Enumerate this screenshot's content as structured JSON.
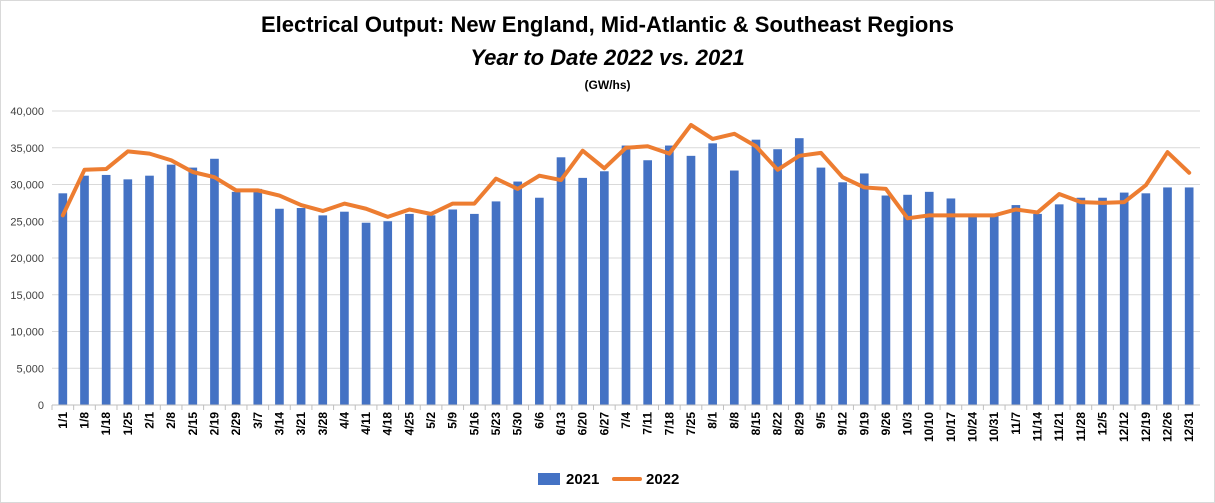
{
  "chart_data": {
    "type": "bar",
    "title": "Electrical Output:  New England, Mid-Atlantic & Southeast Regions",
    "subtitle": "Year to Date 2022 vs. 2021",
    "units": "(GW/hs)",
    "categories": [
      "1/1",
      "1/8",
      "1/18",
      "1/25",
      "2/1",
      "2/8",
      "2/15",
      "2/19",
      "2/29",
      "3/7",
      "3/14",
      "3/21",
      "3/28",
      "4/4",
      "4/11",
      "4/18",
      "4/25",
      "5/2",
      "5/9",
      "5/16",
      "5/23",
      "5/30",
      "6/6",
      "6/13",
      "6/20",
      "6/27",
      "7/4",
      "7/11",
      "7/18",
      "7/25",
      "8/1",
      "8/8",
      "8/15",
      "8/22",
      "8/29",
      "9/5",
      "9/12",
      "9/19",
      "9/26",
      "10/3",
      "10/10",
      "10/17",
      "10/24",
      "10/31",
      "11/7",
      "11/14",
      "11/21",
      "11/28",
      "12/5",
      "12/12",
      "12/19",
      "12/26",
      "12/31"
    ],
    "y_ticks": [
      "0",
      "5,000",
      "10,000",
      "15,000",
      "20,000",
      "25,000",
      "30,000",
      "35,000",
      "40,000"
    ],
    "ylim": [
      0,
      40000
    ],
    "colors": {
      "bar": "#4472c4",
      "line": "#ed7d31",
      "grid": "#d9d9d9",
      "axis": "#bfbfbf"
    },
    "legend_position": "bottom",
    "series": [
      {
        "name": "2021",
        "type": "bar",
        "values": [
          28800,
          31200,
          31300,
          30700,
          31200,
          32700,
          32300,
          33500,
          29000,
          29400,
          26700,
          26800,
          25800,
          26300,
          24800,
          25000,
          26000,
          25800,
          26600,
          26000,
          27700,
          30400,
          28200,
          33700,
          30900,
          31800,
          35300,
          33300,
          35300,
          33900,
          35600,
          31900,
          36100,
          34800,
          36300,
          32300,
          30300,
          31500,
          28500,
          28600,
          29000,
          28100,
          25700,
          25700,
          27200,
          26000,
          27300,
          28200,
          28200,
          28900,
          28800,
          29600,
          29600
        ]
      },
      {
        "name": "2022",
        "type": "line",
        "values": [
          25800,
          32000,
          32100,
          34500,
          34200,
          33300,
          31700,
          31000,
          29200,
          29200,
          28500,
          27200,
          26400,
          27400,
          26700,
          25600,
          26600,
          26000,
          27400,
          27400,
          30800,
          29400,
          31200,
          30600,
          34600,
          32200,
          35000,
          35200,
          34200,
          38100,
          36200,
          36900,
          35200,
          32000,
          33900,
          34300,
          31000,
          29600,
          29400,
          25400,
          25800,
          25800,
          25800,
          25800,
          26600,
          26200,
          28700,
          27600,
          27500,
          27600,
          29900,
          34400,
          31600
        ]
      }
    ]
  }
}
